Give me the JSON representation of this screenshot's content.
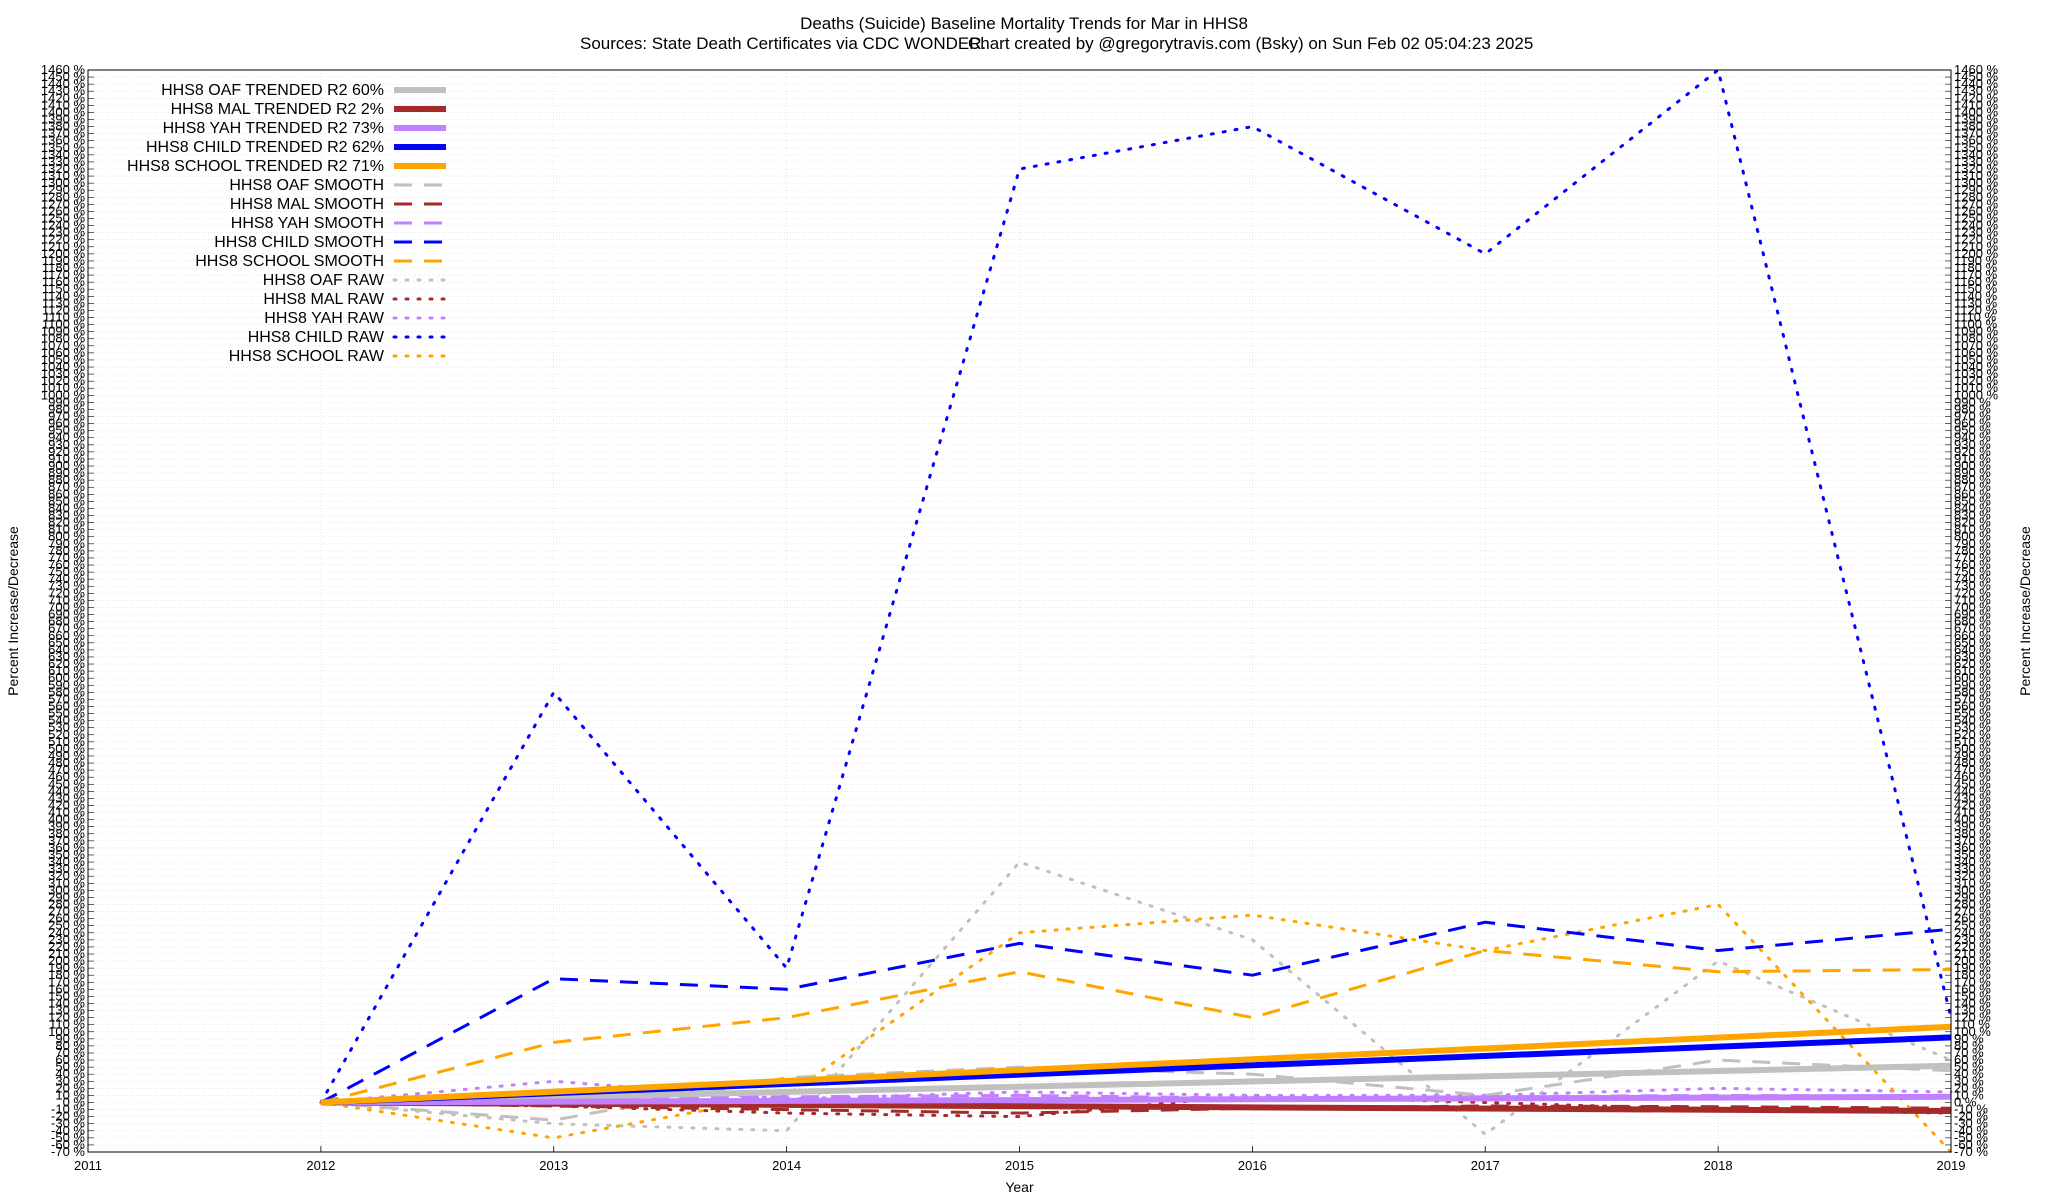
{
  "title_main": "Deaths (Suicide)  Baseline Mortality Trends for Mar in HHS8",
  "title_sources": "Sources: State Death Certificates via CDC WONDER.",
  "title_credit": "Chart created by @gregorytravis.com (Bsky) on Sun Feb 02 05:04:23 2025",
  "chart_data": {
    "type": "line",
    "title": "Deaths (Suicide)  Baseline Mortality Trends for Mar in HHS8",
    "xlabel": "Year",
    "ylabel": "Percent Increase/Decrease",
    "y2label": "Percent Increase/Decrease",
    "xlim": [
      2011,
      2019
    ],
    "ylim": [
      -70,
      1460
    ],
    "ytick_step": 10,
    "grid": true,
    "legend_position": "top-left",
    "x_ticks": [
      "2011",
      "2012",
      "2013",
      "2014",
      "2015",
      "2016",
      "2017",
      "2018",
      "2019"
    ],
    "series": [
      {
        "name": "HHS8 OAF TRENDED R2  60%",
        "color": "#c0c0c0",
        "style": "solid-thick",
        "x": [
          2012,
          2019
        ],
        "values": [
          0,
          52
        ]
      },
      {
        "name": "HHS8 MAL TRENDED R2   2%",
        "color": "#a52a2a",
        "style": "solid-thick",
        "x": [
          2012,
          2019
        ],
        "values": [
          0,
          -12
        ]
      },
      {
        "name": "HHS8 YAH TRENDED R2  73%",
        "color": "#c080ff",
        "style": "solid-thick",
        "x": [
          2012,
          2019
        ],
        "values": [
          0,
          8
        ]
      },
      {
        "name": "HHS8 CHILD TRENDED R2  62%",
        "color": "#0000ff",
        "style": "solid-thick",
        "x": [
          2012,
          2019
        ],
        "values": [
          0,
          92
        ]
      },
      {
        "name": "HHS8 SCHOOL TRENDED R2  71%",
        "color": "#ffa500",
        "style": "solid-thick",
        "x": [
          2012,
          2019
        ],
        "values": [
          0,
          107
        ]
      },
      {
        "name": "HHS8 OAF SMOOTH",
        "color": "#c0c0c0",
        "style": "dash",
        "x": [
          2012,
          2013,
          2014,
          2015,
          2016,
          2017,
          2018,
          2019
        ],
        "values": [
          0,
          -25,
          35,
          50,
          40,
          10,
          60,
          45
        ]
      },
      {
        "name": "HHS8 MAL SMOOTH",
        "color": "#a52a2a",
        "style": "dash",
        "x": [
          2012,
          2013,
          2014,
          2015,
          2016,
          2017,
          2018,
          2019
        ],
        "values": [
          0,
          -5,
          -10,
          -15,
          -8,
          -5,
          -6,
          -8
        ]
      },
      {
        "name": "HHS8 YAH SMOOTH",
        "color": "#c080ff",
        "style": "dash",
        "x": [
          2012,
          2013,
          2014,
          2015,
          2016,
          2017,
          2018,
          2019
        ],
        "values": [
          0,
          5,
          8,
          10,
          6,
          8,
          10,
          9
        ]
      },
      {
        "name": "HHS8 CHILD SMOOTH",
        "color": "#0000ff",
        "style": "dash",
        "x": [
          2012,
          2013,
          2014,
          2015,
          2016,
          2017,
          2018,
          2019
        ],
        "values": [
          0,
          175,
          160,
          225,
          180,
          255,
          215,
          245
        ]
      },
      {
        "name": "HHS8 SCHOOL SMOOTH",
        "color": "#ffa500",
        "style": "dash",
        "x": [
          2012,
          2013,
          2014,
          2015,
          2016,
          2017,
          2018,
          2019
        ],
        "values": [
          0,
          85,
          120,
          185,
          120,
          215,
          185,
          188
        ]
      },
      {
        "name": "HHS8 OAF RAW",
        "color": "#c0c0c0",
        "style": "dot",
        "x": [
          2012,
          2013,
          2014,
          2015,
          2016,
          2017,
          2018,
          2019
        ],
        "values": [
          0,
          -30,
          -40,
          340,
          230,
          -45,
          200,
          60
        ]
      },
      {
        "name": "HHS8 MAL RAW",
        "color": "#a52a2a",
        "style": "dot",
        "x": [
          2012,
          2013,
          2014,
          2015,
          2016,
          2017,
          2018,
          2019
        ],
        "values": [
          0,
          -5,
          -15,
          -20,
          10,
          0,
          -10,
          -15
        ]
      },
      {
        "name": "HHS8 YAH RAW",
        "color": "#c080ff",
        "style": "dot",
        "x": [
          2012,
          2013,
          2014,
          2015,
          2016,
          2017,
          2018,
          2019
        ],
        "values": [
          0,
          30,
          5,
          15,
          10,
          10,
          20,
          15
        ]
      },
      {
        "name": "HHS8 CHILD RAW",
        "color": "#0000ff",
        "style": "dot",
        "x": [
          2012,
          2013,
          2014,
          2015,
          2016,
          2017,
          2018,
          2019
        ],
        "values": [
          0,
          580,
          190,
          1320,
          1380,
          1200,
          1460,
          120
        ]
      },
      {
        "name": "HHS8 SCHOOL RAW",
        "color": "#ffa500",
        "style": "dot",
        "x": [
          2012,
          2013,
          2014,
          2015,
          2016,
          2017,
          2018,
          2019
        ],
        "values": [
          0,
          -50,
          10,
          240,
          265,
          215,
          280,
          -70
        ]
      }
    ]
  }
}
